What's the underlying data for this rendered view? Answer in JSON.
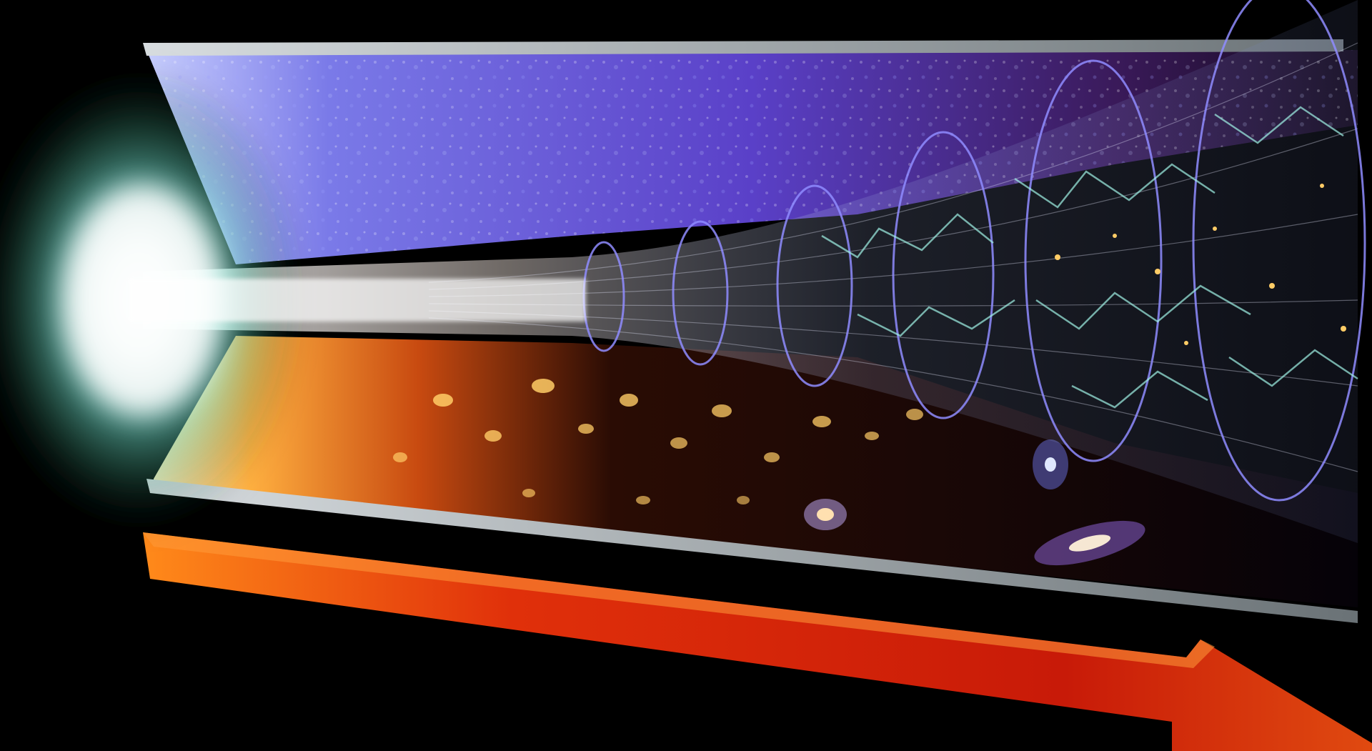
{
  "image": {
    "subject": "cosmic-expansion-timeline-illustration",
    "text_visible": false
  },
  "palette": {
    "background": "#000000",
    "upper_panel": "#5a4ad0",
    "upper_panel_dark": "#3a1a5a",
    "lower_panel_hot": "#ff8a1e",
    "flash_core": "#ffffff",
    "flash_glow": "#7ff0e0",
    "funnel_ring": "#8f8cff",
    "panel_edge": "#9aa3a6",
    "arrow": "#e0300a",
    "arrow_highlight": "#ff7a1a",
    "filament": "#9ff2e6",
    "galaxy_glow": "#ffcc66"
  },
  "elements": {
    "big_bang_flash": "bright-flash-icon",
    "cosmic_background_panel": "speckled-purple-panel",
    "galaxy_era_panel": "galaxies-panel",
    "expansion_funnel": "expanding-funnel",
    "time_arrow": "arrow-right-icon"
  }
}
